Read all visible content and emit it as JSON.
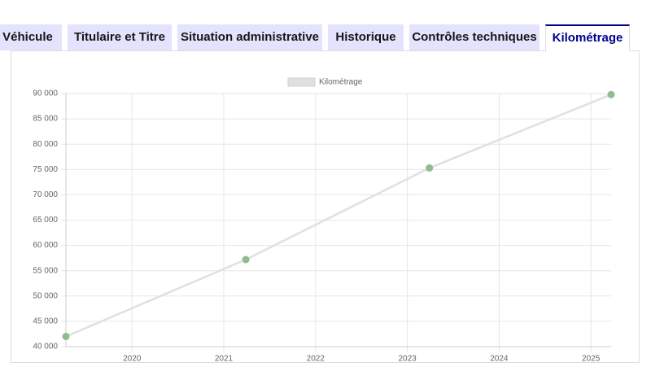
{
  "tabs": [
    "Véhicule",
    "Titulaire et Titre",
    "Situation administrative",
    "Historique",
    "Contrôles techniques",
    "Kilométrage"
  ],
  "active_tab": 5,
  "chart_data": {
    "type": "line",
    "x": [
      2019.28,
      2021.24,
      2023.24,
      2025.22
    ],
    "series": [
      {
        "name": "Kilométrage",
        "color": "#e0e0e0",
        "marker_color": "#8fbc8f",
        "values": [
          42000,
          57200,
          75300,
          89800
        ]
      }
    ],
    "xlim": [
      2019.28,
      2025.22
    ],
    "xticks": [
      2020,
      2021,
      2022,
      2023,
      2024,
      2025
    ],
    "ylim": [
      40000,
      90000
    ],
    "yticks": [
      {
        "value": 40000,
        "label": "40 000"
      },
      {
        "value": 45000,
        "label": "45 000"
      },
      {
        "value": 50000,
        "label": "50 000"
      },
      {
        "value": 55000,
        "label": "55 000"
      },
      {
        "value": 60000,
        "label": "60 000"
      },
      {
        "value": 65000,
        "label": "65 000"
      },
      {
        "value": 70000,
        "label": "70 000"
      },
      {
        "value": 75000,
        "label": "75 000"
      },
      {
        "value": 80000,
        "label": "80 000"
      },
      {
        "value": 85000,
        "label": "85 000"
      },
      {
        "value": 90000,
        "label": "90 000"
      }
    ],
    "grid": true,
    "legend": "top"
  }
}
